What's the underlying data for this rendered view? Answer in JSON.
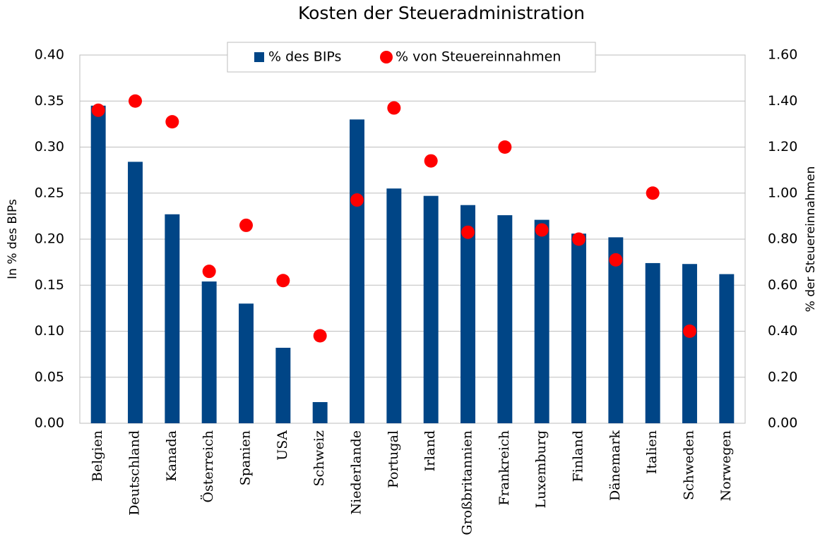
{
  "chart_data": {
    "type": "bar",
    "title": "Kosten der Steueradministration",
    "ylabel": "In % des BIPs",
    "y2label": "% der Steuereinnahmen",
    "categories": [
      "Belgien",
      "Deutschland",
      "Kanada",
      "Österreich",
      "Spanien",
      "USA",
      "Schweiz",
      "Niederlande",
      "Portugal",
      "Irland",
      "Großbritannien",
      "Frankreich",
      "Luxemburg",
      "Finland",
      "Dänemark",
      "Italien",
      "Schweden",
      "Norwegen"
    ],
    "series": [
      {
        "name": "% des BIPs",
        "type": "bar",
        "color": "#004586",
        "values": [
          0.345,
          0.284,
          0.227,
          0.154,
          0.13,
          0.082,
          0.023,
          0.33,
          0.255,
          0.247,
          0.237,
          0.226,
          0.221,
          0.206,
          0.202,
          0.174,
          0.173,
          0.162
        ]
      },
      {
        "name": "% von Steuereinnahmen",
        "type": "scatter",
        "axis": "y2",
        "color": "#ff0000",
        "values": [
          1.36,
          1.4,
          1.31,
          0.66,
          0.86,
          0.62,
          0.38,
          0.97,
          1.37,
          1.14,
          0.83,
          1.2,
          0.84,
          0.8,
          0.71,
          1.0,
          0.4,
          null
        ]
      }
    ],
    "ylim": [
      0,
      0.4
    ],
    "yticks": [
      {
        "value": 0,
        "label": "0.00"
      },
      {
        "value": 0.05,
        "label": "0.05"
      },
      {
        "value": 0.1,
        "label": "0.10"
      },
      {
        "value": 0.15,
        "label": "0.15"
      },
      {
        "value": 0.2,
        "label": "0.20"
      },
      {
        "value": 0.25,
        "label": "0.25"
      },
      {
        "value": 0.3,
        "label": "0.30"
      },
      {
        "value": 0.35,
        "label": "0.35"
      },
      {
        "value": 0.4,
        "label": "0.40"
      }
    ],
    "y2lim": [
      0,
      1.6
    ],
    "y2ticks": [
      {
        "value": 0,
        "label": "0.00"
      },
      {
        "value": 0.2,
        "label": "0.20"
      },
      {
        "value": 0.4,
        "label": "0.40"
      },
      {
        "value": 0.6,
        "label": "0.60"
      },
      {
        "value": 0.8,
        "label": "0.80"
      },
      {
        "value": 1,
        "label": "1.00"
      },
      {
        "value": 1.2,
        "label": "1.20"
      },
      {
        "value": 1.4,
        "label": "1.40"
      },
      {
        "value": 1.6,
        "label": "1.60"
      }
    ],
    "grid": true,
    "legend": "top"
  }
}
